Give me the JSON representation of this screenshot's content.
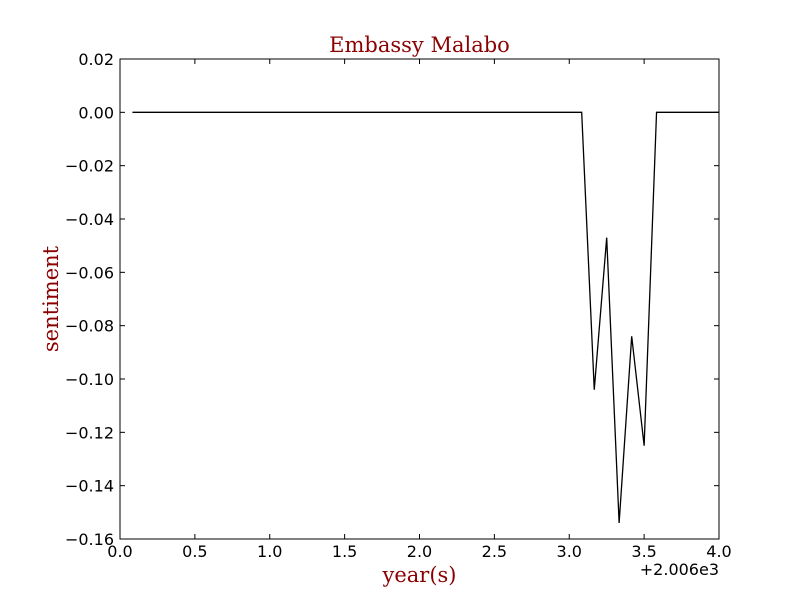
{
  "chart_data": {
    "type": "line",
    "title": "Embassy Malabo",
    "xlabel": "year(s)",
    "ylabel": "sentiment",
    "x_offset_label": "+2.006e3",
    "xlim": [
      0.0,
      4.0
    ],
    "ylim": [
      -0.16,
      0.02
    ],
    "x_ticks": [
      0.0,
      0.5,
      1.0,
      1.5,
      2.0,
      2.5,
      3.0,
      3.5,
      4.0
    ],
    "x_tick_labels": [
      "0.0",
      "0.5",
      "1.0",
      "1.5",
      "2.0",
      "2.5",
      "3.0",
      "3.5",
      "4.0"
    ],
    "y_ticks": [
      0.02,
      0.0,
      -0.02,
      -0.04,
      -0.06,
      -0.08,
      -0.1,
      -0.12,
      -0.14,
      -0.16
    ],
    "y_tick_labels": [
      "0.02",
      "0.00",
      "−0.02",
      "−0.04",
      "−0.06",
      "−0.08",
      "−0.10",
      "−0.12",
      "−0.14",
      "−0.16"
    ],
    "grid": false,
    "series": [
      {
        "color": "#000000",
        "x": [
          0.083,
          3.083,
          3.167,
          3.25,
          3.333,
          3.417,
          3.5,
          3.583,
          3.667,
          3.75,
          3.833,
          3.917,
          4.0
        ],
        "y": [
          0.0,
          0.0,
          -0.104,
          -0.047,
          -0.154,
          -0.084,
          -0.125,
          0.0,
          0.0,
          0.0,
          0.0,
          0.0,
          0.0
        ]
      }
    ],
    "colors": {
      "title": "#8b0000",
      "axis_label": "#8b0000",
      "line": "#000000",
      "frame": "#000000"
    }
  }
}
